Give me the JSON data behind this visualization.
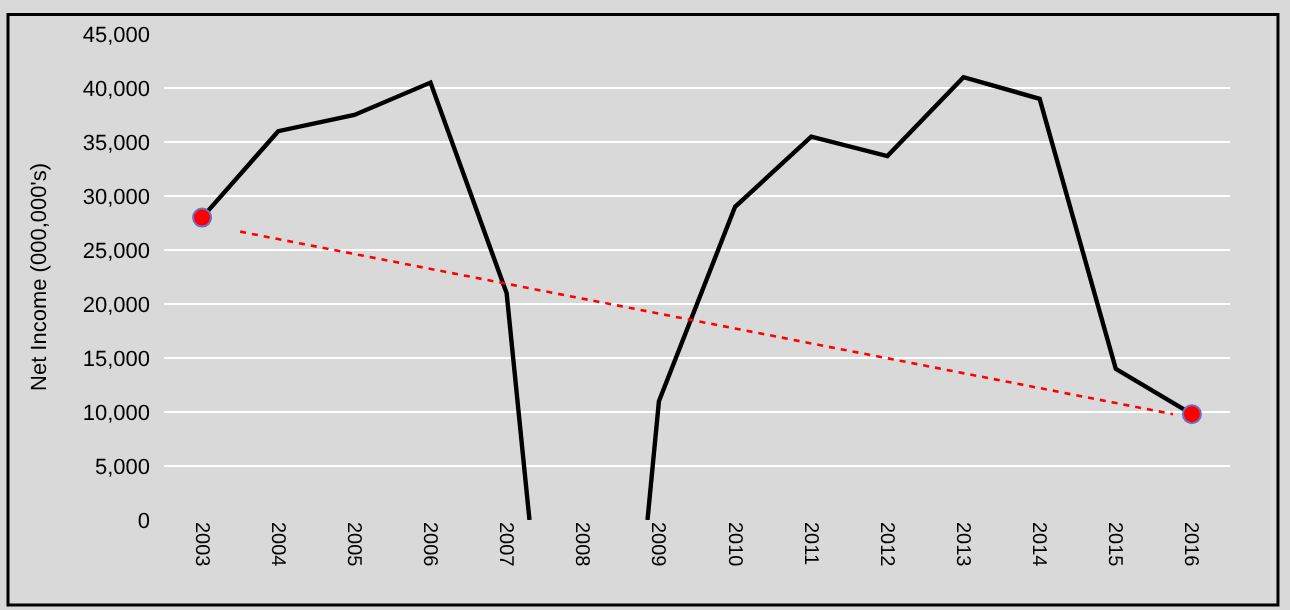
{
  "chart_data": {
    "type": "line",
    "ylabel": "Net Income (000,000's)",
    "x": [
      2003,
      2004,
      2005,
      2006,
      2007,
      2007.3,
      2008,
      2008.85,
      2009,
      2010,
      2011,
      2012,
      2013,
      2014,
      2015,
      2016
    ],
    "series": [
      {
        "color": "#000000",
        "marker": "none",
        "line_style": "solid",
        "values": [
          28000,
          36000,
          37500,
          40500,
          21000,
          0,
          null,
          0,
          11000,
          29000,
          35500,
          33700,
          41000,
          39000,
          14000,
          9800
        ]
      },
      {
        "type": "line",
        "color": "#ff0000",
        "marker": "none",
        "line_style": "dotted",
        "x": [
          2003.5,
          2015.75
        ],
        "values": [
          26700,
          9800
        ]
      },
      {
        "type": "scatter",
        "color": "#ff0000",
        "marker": "circle",
        "x": [
          2003,
          2016
        ],
        "values": [
          28000,
          9800
        ]
      }
    ],
    "xlim": [
      2002.5,
      2016.5
    ],
    "xticks": [
      2003,
      2004,
      2005,
      2006,
      2007,
      2008,
      2009,
      2010,
      2011,
      2012,
      2013,
      2014,
      2015,
      2016
    ],
    "ylim": [
      0,
      45000
    ],
    "yticks": [
      {
        "value": 0,
        "label": "0"
      },
      {
        "value": 5000,
        "label": "5,000"
      },
      {
        "value": 10000,
        "label": "10,000"
      },
      {
        "value": 15000,
        "label": "15,000"
      },
      {
        "value": 20000,
        "label": "20,000"
      },
      {
        "value": 25000,
        "label": "25,000"
      },
      {
        "value": 30000,
        "label": "30,000"
      },
      {
        "value": 35000,
        "label": "35,000"
      },
      {
        "value": 40000,
        "label": "40,000"
      },
      {
        "value": 45000,
        "label": "45,000"
      }
    ],
    "grid": "y"
  }
}
